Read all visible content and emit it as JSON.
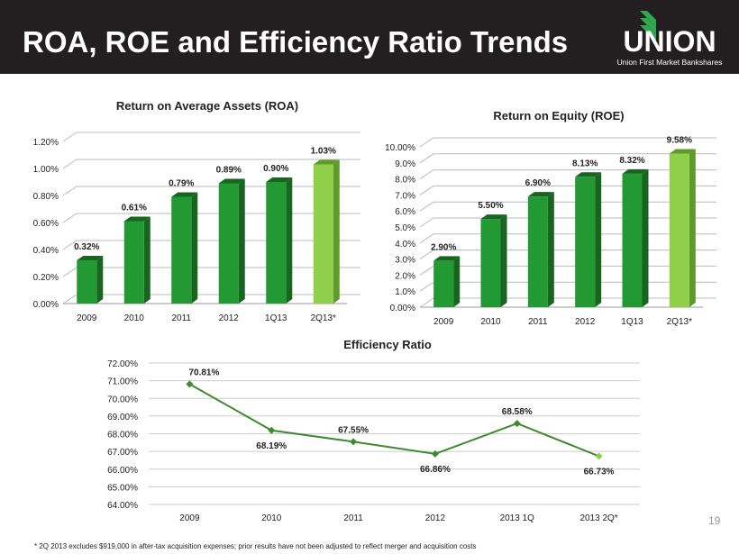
{
  "header": {
    "title": "ROA, ROE and Efficiency Ratio Trends",
    "logo_text": "UNION",
    "logo_subtext": "Union First Market Bankshares"
  },
  "colors": {
    "bar": "#229933",
    "bar_side": "#17651f",
    "highlight": "#8fcf4a",
    "highlight_side": "#5e9a2c",
    "line": "#3f8a2f",
    "header_bg": "#231f20"
  },
  "chart_data": [
    {
      "type": "bar",
      "title": "Return on Average Assets (ROA)",
      "categories": [
        "2009",
        "2010",
        "2011",
        "2012",
        "1Q13",
        "2Q13*"
      ],
      "values": [
        0.32,
        0.61,
        0.79,
        0.89,
        0.9,
        1.03
      ],
      "data_labels": [
        "0.32%",
        "0.61%",
        "0.79%",
        "0.89%",
        "0.90%",
        "1.03%"
      ],
      "yticks": [
        "0.00%",
        "0.20%",
        "0.40%",
        "0.60%",
        "0.80%",
        "1.00%",
        "1.20%"
      ],
      "ylim": [
        0,
        1.2
      ],
      "grid": true,
      "style": "3d",
      "highlight_last": true
    },
    {
      "type": "bar",
      "title": "Return on Equity (ROE)",
      "categories": [
        "2009",
        "2010",
        "2011",
        "2012",
        "1Q13",
        "2Q13*"
      ],
      "values": [
        2.9,
        5.5,
        6.9,
        8.13,
        8.32,
        9.58
      ],
      "data_labels": [
        "2.90%",
        "5.50%",
        "6.90%",
        "8.13%",
        "8.32%",
        "9.58%"
      ],
      "yticks": [
        "0.00%",
        "1.0%",
        "2.0%",
        "3.0%",
        "4.0%",
        "5.0%",
        "6.0%",
        "7.0%",
        "8.0%",
        "9.0%",
        "10.00%"
      ],
      "ylim": [
        0,
        10
      ],
      "grid": true,
      "style": "3d",
      "highlight_last": true
    },
    {
      "type": "line",
      "title": "Efficiency Ratio",
      "categories": [
        "2009",
        "2010",
        "2011",
        "2012",
        "2013 1Q",
        "2013 2Q*"
      ],
      "values": [
        70.81,
        68.19,
        67.55,
        66.86,
        68.58,
        66.73
      ],
      "data_labels": [
        "70.81%",
        "68.19%",
        "67.55%",
        "66.86%",
        "68.58%",
        "66.73%"
      ],
      "yticks": [
        "64.00%",
        "65.00%",
        "66.00%",
        "67.00%",
        "68.00%",
        "69.00%",
        "70.00%",
        "71.00%",
        "72.00%"
      ],
      "ylim": [
        64,
        72
      ],
      "grid": true,
      "highlight_last": true
    }
  ],
  "page_number": "19",
  "footnote": "* 2Q 2013 excludes $919,000 in after-tax acquisition expenses; prior results have not been adjusted to reflect merger and acquisition costs"
}
